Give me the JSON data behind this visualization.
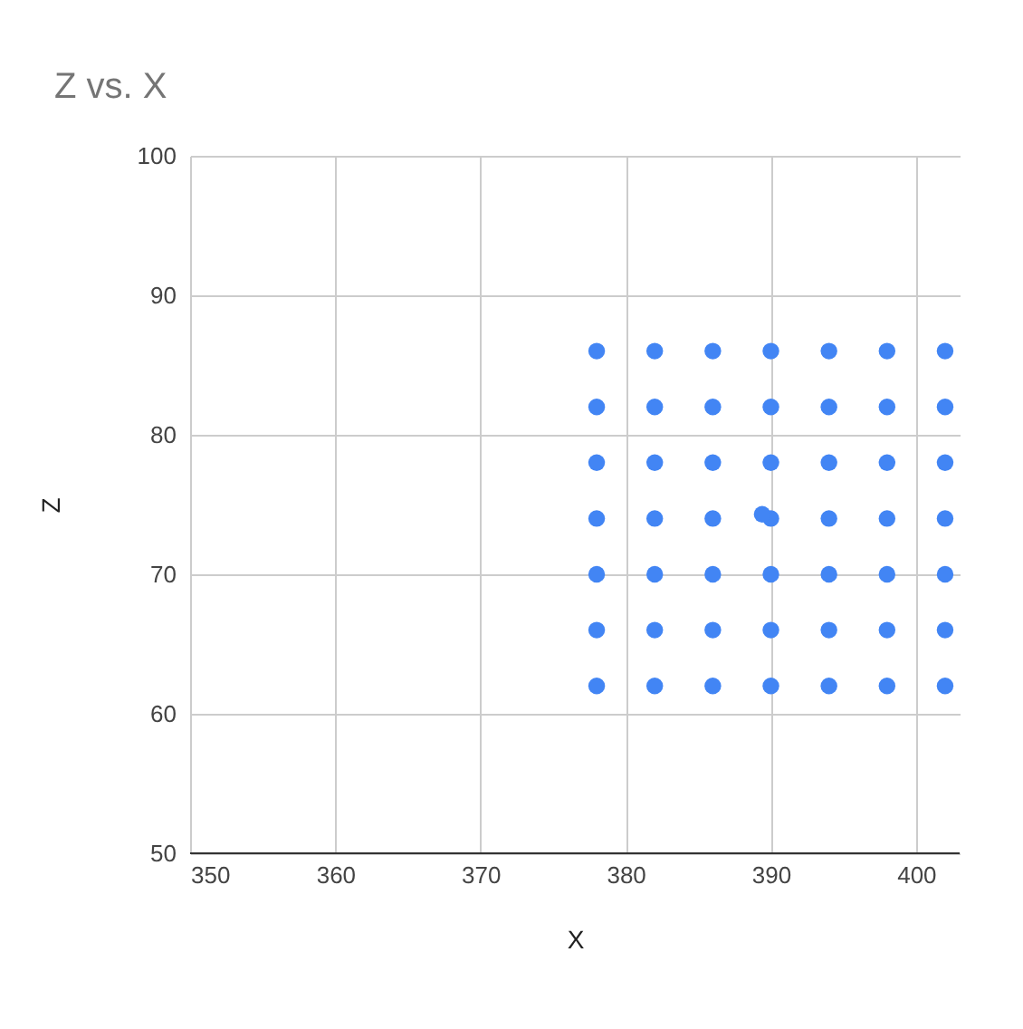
{
  "chart_data": {
    "type": "scatter",
    "title": "Z vs. X",
    "xlabel": "X",
    "ylabel": "Z",
    "x": [
      378,
      382,
      386,
      390,
      394,
      398,
      402,
      378,
      382,
      386,
      390,
      394,
      398,
      402,
      378,
      382,
      386,
      390,
      394,
      398,
      402,
      378,
      382,
      386,
      390,
      394,
      398,
      402,
      378,
      382,
      386,
      390,
      394,
      398,
      402,
      378,
      382,
      386,
      390,
      394,
      398,
      402,
      378,
      382,
      386,
      390,
      394,
      398,
      402,
      389.4
    ],
    "series": [
      {
        "color": "#4285f4",
        "values": [
          86,
          86,
          86,
          86,
          86,
          86,
          86,
          82,
          82,
          82,
          82,
          82,
          82,
          82,
          78,
          78,
          78,
          78,
          78,
          78,
          78,
          74,
          74,
          74,
          74,
          74,
          74,
          74,
          70,
          70,
          70,
          70,
          70,
          70,
          70,
          66,
          66,
          66,
          66,
          66,
          66,
          66,
          62,
          62,
          62,
          62,
          62,
          62,
          62,
          74.3
        ]
      }
    ],
    "xlim": [
      350,
      403
    ],
    "xticks": [
      350,
      360,
      370,
      380,
      390,
      400
    ],
    "ylim": [
      50,
      100
    ],
    "yticks": [
      50,
      60,
      70,
      80,
      90,
      100
    ],
    "grid": true,
    "marker": "circle",
    "legend": false
  }
}
